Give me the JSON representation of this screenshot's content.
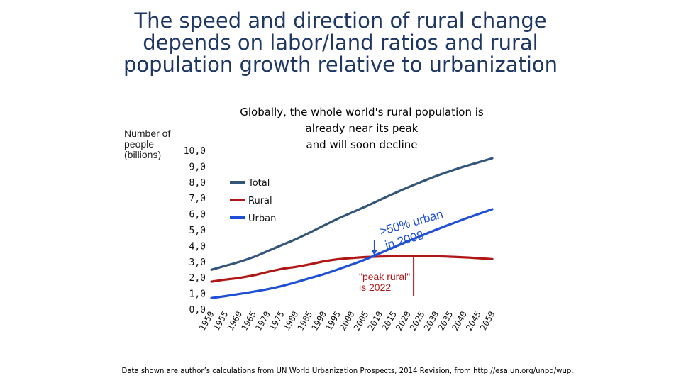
{
  "page": {
    "title_lines": [
      "The speed and direction of rural change",
      "depends on labor/land ratios and rural",
      "population growth relative to urbanization"
    ],
    "footnote_text": "Data shown are author’s calculations from UN World Urbanization Prospects, 2014 Revision, from ",
    "footnote_link": "http://esa.un.org/unpd/wup",
    "footnote_end": "."
  },
  "chart_data": {
    "type": "line",
    "title_lines": [
      "Globally, the whole world's rural population is",
      "already near its peak",
      "and will soon decline"
    ],
    "ylabel": "Number of\npeople\n(billions)",
    "ylim": [
      0,
      10
    ],
    "y_ticks": [
      "10,0",
      "9,0",
      "8,0",
      "7,0",
      "6,0",
      "5,0",
      "4,0",
      "3,0",
      "2,0",
      "1,0",
      "0,0"
    ],
    "x": [
      1950,
      1955,
      1960,
      1965,
      1970,
      1975,
      1980,
      1985,
      1990,
      1995,
      2000,
      2005,
      2010,
      2015,
      2020,
      2025,
      2030,
      2035,
      2040,
      2045,
      2050
    ],
    "x_tick_labels": [
      "1950",
      "1955",
      "1960",
      "1965",
      "1970",
      "1975",
      "1980",
      "1985",
      "1990",
      "1995",
      "2000",
      "2005",
      "2010",
      "2015",
      "2020",
      "2025",
      "2030",
      "2035",
      "2040",
      "2045",
      "2050"
    ],
    "series": [
      {
        "name": "Total",
        "color": "#34557a",
        "values": [
          2.53,
          2.78,
          3.03,
          3.33,
          3.7,
          4.08,
          4.45,
          4.87,
          5.31,
          5.74,
          6.13,
          6.52,
          6.93,
          7.33,
          7.72,
          8.08,
          8.43,
          8.74,
          9.03,
          9.29,
          9.55
        ]
      },
      {
        "name": "Rural",
        "color": "#b01818",
        "values": [
          1.78,
          1.91,
          2.02,
          2.18,
          2.39,
          2.58,
          2.71,
          2.87,
          3.06,
          3.19,
          3.27,
          3.33,
          3.36,
          3.38,
          3.39,
          3.39,
          3.38,
          3.35,
          3.31,
          3.26,
          3.2
        ]
      },
      {
        "name": "Urban",
        "color": "#1f4fd4",
        "values": [
          0.75,
          0.87,
          1.01,
          1.15,
          1.31,
          1.5,
          1.74,
          2.0,
          2.25,
          2.55,
          2.86,
          3.19,
          3.57,
          3.95,
          4.33,
          4.69,
          5.05,
          5.39,
          5.72,
          6.03,
          6.34
        ]
      }
    ],
    "annotations": [
      {
        "id": "urban",
        "lines": [
          ">50% urban",
          "in 2008"
        ],
        "year": 2008,
        "color": "#1f4fd4"
      },
      {
        "id": "peak",
        "lines": [
          "\"peak rural\"",
          "is 2022"
        ],
        "year": 2022,
        "color": "#b01818"
      }
    ],
    "legend_position": "top-left",
    "grid": false
  }
}
